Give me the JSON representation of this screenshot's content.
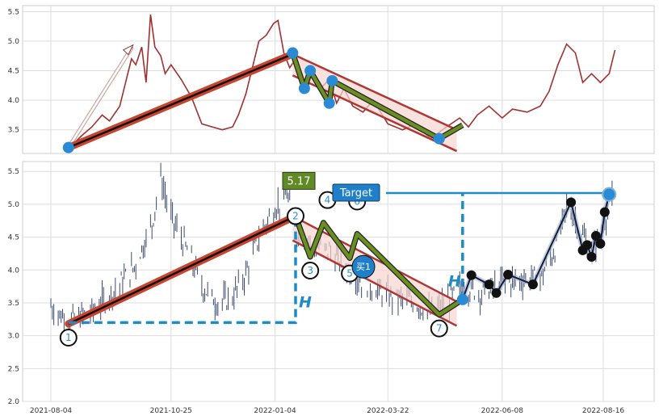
{
  "chart_data": {
    "type": "line",
    "x_tick_labels": [
      "2021-08-04",
      "2021-10-25",
      "2022-01-04",
      "2022-03-22",
      "2022-06-08",
      "2022-08-16"
    ],
    "top_panel": {
      "ylim": [
        3.1,
        5.6
      ],
      "yticks": [
        "3.5",
        "4.0",
        "4.5",
        "5.0",
        "5.5"
      ],
      "series": [
        {
          "color": "#a03030",
          "points": [
            [
              "2021-08-16",
              3.18
            ],
            [
              "2021-08-25",
              3.4
            ],
            [
              "2021-09-01",
              3.55
            ],
            [
              "2021-09-08",
              3.75
            ],
            [
              "2021-09-13",
              3.65
            ],
            [
              "2021-09-20",
              3.9
            ],
            [
              "2021-09-24",
              4.3
            ],
            [
              "2021-09-28",
              4.7
            ],
            [
              "2021-10-01",
              4.6
            ],
            [
              "2021-10-05",
              4.9
            ],
            [
              "2021-10-08",
              4.3
            ],
            [
              "2021-10-11",
              5.45
            ],
            [
              "2021-10-14",
              4.9
            ],
            [
              "2021-10-18",
              4.75
            ],
            [
              "2021-10-21",
              4.45
            ],
            [
              "2021-10-25",
              4.6
            ],
            [
              "2021-11-01",
              4.35
            ],
            [
              "2021-11-08",
              4.05
            ],
            [
              "2021-11-15",
              3.6
            ],
            [
              "2021-11-22",
              3.55
            ],
            [
              "2021-11-29",
              3.5
            ],
            [
              "2021-12-06",
              3.55
            ],
            [
              "2021-12-10",
              3.75
            ],
            [
              "2021-12-15",
              4.1
            ],
            [
              "2021-12-20",
              4.6
            ],
            [
              "2021-12-24",
              5.0
            ],
            [
              "2021-12-29",
              5.1
            ],
            [
              "2022-01-03",
              5.3
            ],
            [
              "2022-01-06",
              5.35
            ],
            [
              "2022-01-10",
              4.8
            ],
            [
              "2022-01-14",
              4.55
            ],
            [
              "2022-01-18",
              4.7
            ],
            [
              "2022-01-22",
              4.45
            ],
            [
              "2022-01-26",
              4.2
            ],
            [
              "2022-01-30",
              4.5
            ],
            [
              "2022-02-04",
              4.2
            ],
            [
              "2022-02-10",
              4.35
            ],
            [
              "2022-02-15",
              3.95
            ],
            [
              "2022-02-20",
              4.2
            ],
            [
              "2022-02-26",
              3.9
            ],
            [
              "2022-03-05",
              3.8
            ],
            [
              "2022-03-12",
              4.0
            ],
            [
              "2022-03-22",
              3.6
            ],
            [
              "2022-04-01",
              3.5
            ],
            [
              "2022-04-10",
              3.6
            ],
            [
              "2022-04-20",
              3.35
            ],
            [
              "2022-05-01",
              3.55
            ],
            [
              "2022-05-10",
              3.7
            ],
            [
              "2022-05-16",
              3.55
            ],
            [
              "2022-05-22",
              3.75
            ],
            [
              "2022-05-30",
              3.9
            ],
            [
              "2022-06-08",
              3.7
            ],
            [
              "2022-06-15",
              3.85
            ],
            [
              "2022-06-25",
              3.8
            ],
            [
              "2022-07-04",
              3.9
            ],
            [
              "2022-07-10",
              4.15
            ],
            [
              "2022-07-16",
              4.6
            ],
            [
              "2022-07-22",
              4.95
            ],
            [
              "2022-07-28",
              4.8
            ],
            [
              "2022-08-02",
              4.3
            ],
            [
              "2022-08-08",
              4.45
            ],
            [
              "2022-08-14",
              4.3
            ],
            [
              "2022-08-20",
              4.45
            ],
            [
              "2022-08-24",
              4.85
            ]
          ]
        }
      ]
    },
    "bottom_panel": {
      "ylim": [
        2.0,
        5.65
      ],
      "yticks": [
        "2.0",
        "2.5",
        "3.0",
        "3.5",
        "4.0",
        "4.5",
        "5.0",
        "5.5"
      ],
      "series_type": "ohlc",
      "price_anchors": [
        [
          "2021-08-04",
          3.45
        ],
        [
          "2021-08-15",
          3.22
        ],
        [
          "2021-08-31",
          3.35
        ],
        [
          "2021-09-15",
          3.65
        ],
        [
          "2021-09-30",
          4.05
        ],
        [
          "2021-10-12",
          4.7
        ],
        [
          "2021-10-18",
          5.4
        ],
        [
          "2021-10-25",
          4.8
        ],
        [
          "2021-11-05",
          4.3
        ],
        [
          "2021-11-15",
          3.75
        ],
        [
          "2021-11-25",
          3.5
        ],
        [
          "2021-12-05",
          3.55
        ],
        [
          "2021-12-14",
          3.9
        ],
        [
          "2021-12-24",
          4.5
        ],
        [
          "2022-01-04",
          4.95
        ],
        [
          "2022-01-12",
          5.15
        ],
        [
          "2022-01-18",
          4.6
        ],
        [
          "2022-01-28",
          4.4
        ],
        [
          "2022-02-10",
          4.3
        ],
        [
          "2022-02-25",
          3.95
        ],
        [
          "2022-03-10",
          3.75
        ],
        [
          "2022-03-22",
          3.6
        ],
        [
          "2022-04-05",
          3.55
        ],
        [
          "2022-04-20",
          3.35
        ],
        [
          "2022-05-01",
          3.5
        ],
        [
          "2022-05-12",
          3.75
        ],
        [
          "2022-05-25",
          3.65
        ],
        [
          "2022-06-08",
          3.8
        ],
        [
          "2022-06-20",
          3.85
        ],
        [
          "2022-07-05",
          3.9
        ],
        [
          "2022-07-15",
          4.35
        ],
        [
          "2022-07-22",
          4.95
        ],
        [
          "2022-07-30",
          4.7
        ],
        [
          "2022-08-06",
          4.3
        ],
        [
          "2022-08-12",
          4.45
        ],
        [
          "2022-08-18",
          4.85
        ],
        [
          "2022-08-22",
          5.05
        ]
      ],
      "zigzag_points": [
        {
          "label": "1",
          "date": "2021-08-16",
          "y": 3.18
        },
        {
          "label": "2",
          "date": "2022-01-18",
          "y": 4.82
        },
        {
          "label": "3",
          "date": "2022-01-28",
          "y": 4.2
        },
        {
          "label": "4",
          "date": "2022-02-06",
          "y": 4.72
        },
        {
          "label": "5",
          "date": "2022-02-24",
          "y": 4.18
        },
        {
          "label": "6",
          "date": "2022-03-01",
          "y": 4.55
        },
        {
          "label": "7",
          "date": "2022-04-26",
          "y": 3.32
        }
      ],
      "breakout_path": [
        [
          "2022-05-12",
          3.55
        ],
        [
          "2022-05-18",
          3.92
        ],
        [
          "2022-05-30",
          3.78
        ],
        [
          "2022-06-04",
          3.65
        ],
        [
          "2022-06-12",
          3.93
        ],
        [
          "2022-06-29",
          3.78
        ],
        [
          "2022-07-25",
          5.03
        ],
        [
          "2022-08-02",
          4.3
        ],
        [
          "2022-08-05",
          4.38
        ],
        [
          "2022-08-08",
          4.2
        ],
        [
          "2022-08-11",
          4.52
        ],
        [
          "2022-08-14",
          4.4
        ],
        [
          "2022-08-17",
          4.88
        ],
        [
          "2022-08-20",
          5.15
        ]
      ],
      "annotations": {
        "price_badge": "5.17",
        "target_label": "Target",
        "buy_label": "买1",
        "height_label": "H",
        "height_label_2": "H",
        "target_price": 5.17
      }
    },
    "colors": {
      "trend": "#c8442e",
      "trend_core": "#111111",
      "channel": "#b03535",
      "zigzag": "#6b8e23",
      "marker_blue": "#2a8ad4",
      "measure": "#1f8bc6",
      "badge_green": "#5f8a25",
      "badge_blue": "#1f7fc8"
    }
  }
}
